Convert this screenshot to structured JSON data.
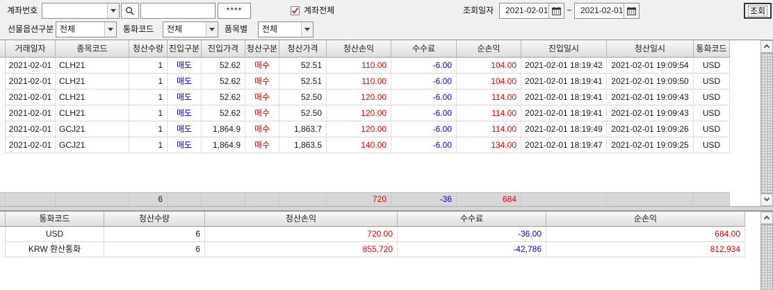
{
  "toolbar": {
    "account_label": "계좌번호",
    "account_combo_value": "",
    "account_name_value": "",
    "password_value": "****",
    "account_all_label": "계좌전체",
    "filter_futures_label": "선물옵션구분",
    "filter_futures_value": "전체",
    "filter_currency_label": "통화코드",
    "filter_currency_value": "전체",
    "filter_item_label": "품목별",
    "filter_item_value": "전체",
    "inquiry_date_label": "조회일자",
    "date_from": "2021-02-01",
    "date_to": "2021-02-01",
    "date_separator": "~",
    "query_button_label": "조회"
  },
  "main_table": {
    "columns": [
      "거래일자",
      "종목코드",
      "청산수량",
      "진입구분",
      "진입가격",
      "청산구분",
      "청산가격",
      "청산손익",
      "수수료",
      "순손익",
      "진입일시",
      "청산일시",
      "통화코드"
    ],
    "rows": [
      [
        "2021-02-01",
        "CLH21",
        "1",
        "매도",
        "52.62",
        "매수",
        "52.51",
        "110.00",
        "-6.00",
        "104.00",
        "2021-02-01 18:19:42",
        "2021-02-01 19:09:54",
        "USD"
      ],
      [
        "2021-02-01",
        "CLH21",
        "1",
        "매도",
        "52.62",
        "매수",
        "52.51",
        "110.00",
        "-6.00",
        "104.00",
        "2021-02-01 18:19:41",
        "2021-02-01 19:09:50",
        "USD"
      ],
      [
        "2021-02-01",
        "CLH21",
        "1",
        "매도",
        "52.62",
        "매수",
        "52.50",
        "120.00",
        "-6.00",
        "114.00",
        "2021-02-01 18:19:41",
        "2021-02-01 19:09:43",
        "USD"
      ],
      [
        "2021-02-01",
        "CLH21",
        "1",
        "매도",
        "52.62",
        "매수",
        "52.50",
        "120.00",
        "-6.00",
        "114.00",
        "2021-02-01 18:19:41",
        "2021-02-01 19:09:43",
        "USD"
      ],
      [
        "2021-02-01",
        "GCJ21",
        "1",
        "매도",
        "1,864.9",
        "매수",
        "1,863.7",
        "120.00",
        "-6.00",
        "114.00",
        "2021-02-01 18:19:49",
        "2021-02-01 19:09:26",
        "USD"
      ],
      [
        "2021-02-01",
        "GCJ21",
        "1",
        "매도",
        "1,864.9",
        "매수",
        "1,863.5",
        "140.00",
        "-6.00",
        "134.00",
        "2021-02-01 18:19:47",
        "2021-02-01 19:09:25",
        "USD"
      ]
    ],
    "summary": {
      "quantity": "6",
      "profit": "720",
      "fee": "-36",
      "net": "684"
    }
  },
  "currency_table": {
    "columns": [
      "통화코드",
      "청산수량",
      "청산손익",
      "수수료",
      "순손익"
    ],
    "rows": [
      [
        "USD",
        "6",
        "720.00",
        "-36.00",
        "684.00"
      ],
      [
        "KRW 환산통화",
        "6",
        "855,720",
        "-42,786",
        "812,934"
      ]
    ]
  },
  "colors": {
    "profit_red": "#dd0000",
    "loss_blue": "#0000cc",
    "check_red": "#b73232",
    "toolbar_bg": "#f0f0f0",
    "summary_bg": "#d7d7d7"
  }
}
